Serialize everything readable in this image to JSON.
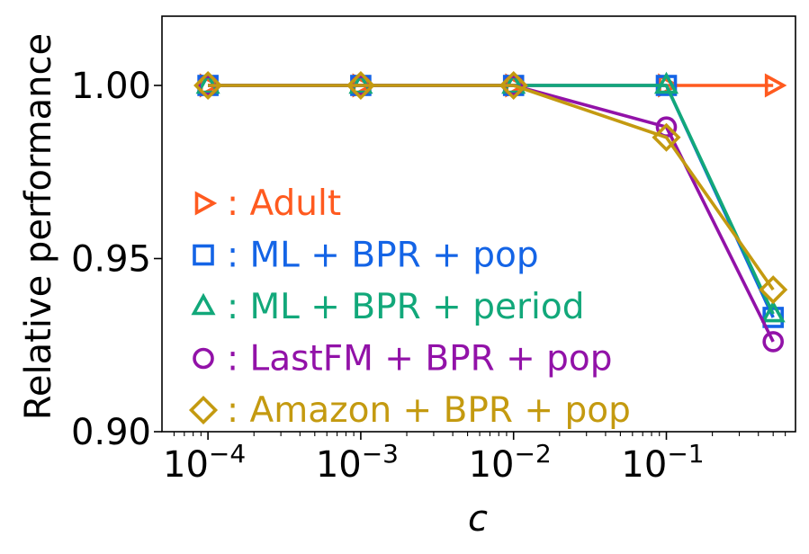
{
  "chart_data": {
    "type": "line",
    "title": "",
    "xlabel": "c",
    "ylabel": "Relative performance",
    "xscale": "log",
    "xlim": [
      5e-05,
      0.7
    ],
    "ylim": [
      0.9,
      1.02
    ],
    "x": [
      0.0001,
      0.001,
      0.01,
      0.1,
      0.5
    ],
    "xticks": [
      {
        "value": 0.0001,
        "base": "10",
        "exp": "−4"
      },
      {
        "value": 0.001,
        "base": "10",
        "exp": "−3"
      },
      {
        "value": 0.01,
        "base": "10",
        "exp": "−2"
      },
      {
        "value": 0.1,
        "base": "10",
        "exp": "−1"
      }
    ],
    "yticks": [
      {
        "value": 0.9,
        "label": "0.90"
      },
      {
        "value": 0.95,
        "label": "0.95"
      },
      {
        "value": 1.0,
        "label": "1.00"
      }
    ],
    "legend_position": "center-left",
    "series": [
      {
        "name": "Adult",
        "legend_text": ": Adult",
        "marker": "triangle-right",
        "color": "#FF5A1F",
        "values": [
          1.0,
          1.0,
          1.0,
          1.0,
          1.0
        ]
      },
      {
        "name": "ML + BPR + pop",
        "legend_text": ": ML + BPR + pop",
        "marker": "square",
        "color": "#1464E6",
        "values": [
          1.0,
          1.0,
          1.0,
          1.0,
          0.933
        ]
      },
      {
        "name": "ML + BPR + period",
        "legend_text": ": ML + BPR + period",
        "marker": "triangle-up",
        "color": "#12A87A",
        "values": [
          1.0,
          1.0,
          1.0,
          1.0,
          0.934
        ]
      },
      {
        "name": "LastFM + BPR + pop",
        "legend_text": ": LastFM + BPR + pop",
        "marker": "circle",
        "color": "#9212A8",
        "values": [
          1.0,
          1.0,
          1.0,
          0.988,
          0.926
        ]
      },
      {
        "name": "Amazon + BPR + pop",
        "legend_text": ": Amazon + BPR + pop",
        "marker": "diamond",
        "color": "#C49A10",
        "values": [
          1.0,
          1.0,
          1.0,
          0.985,
          0.941
        ]
      }
    ]
  }
}
